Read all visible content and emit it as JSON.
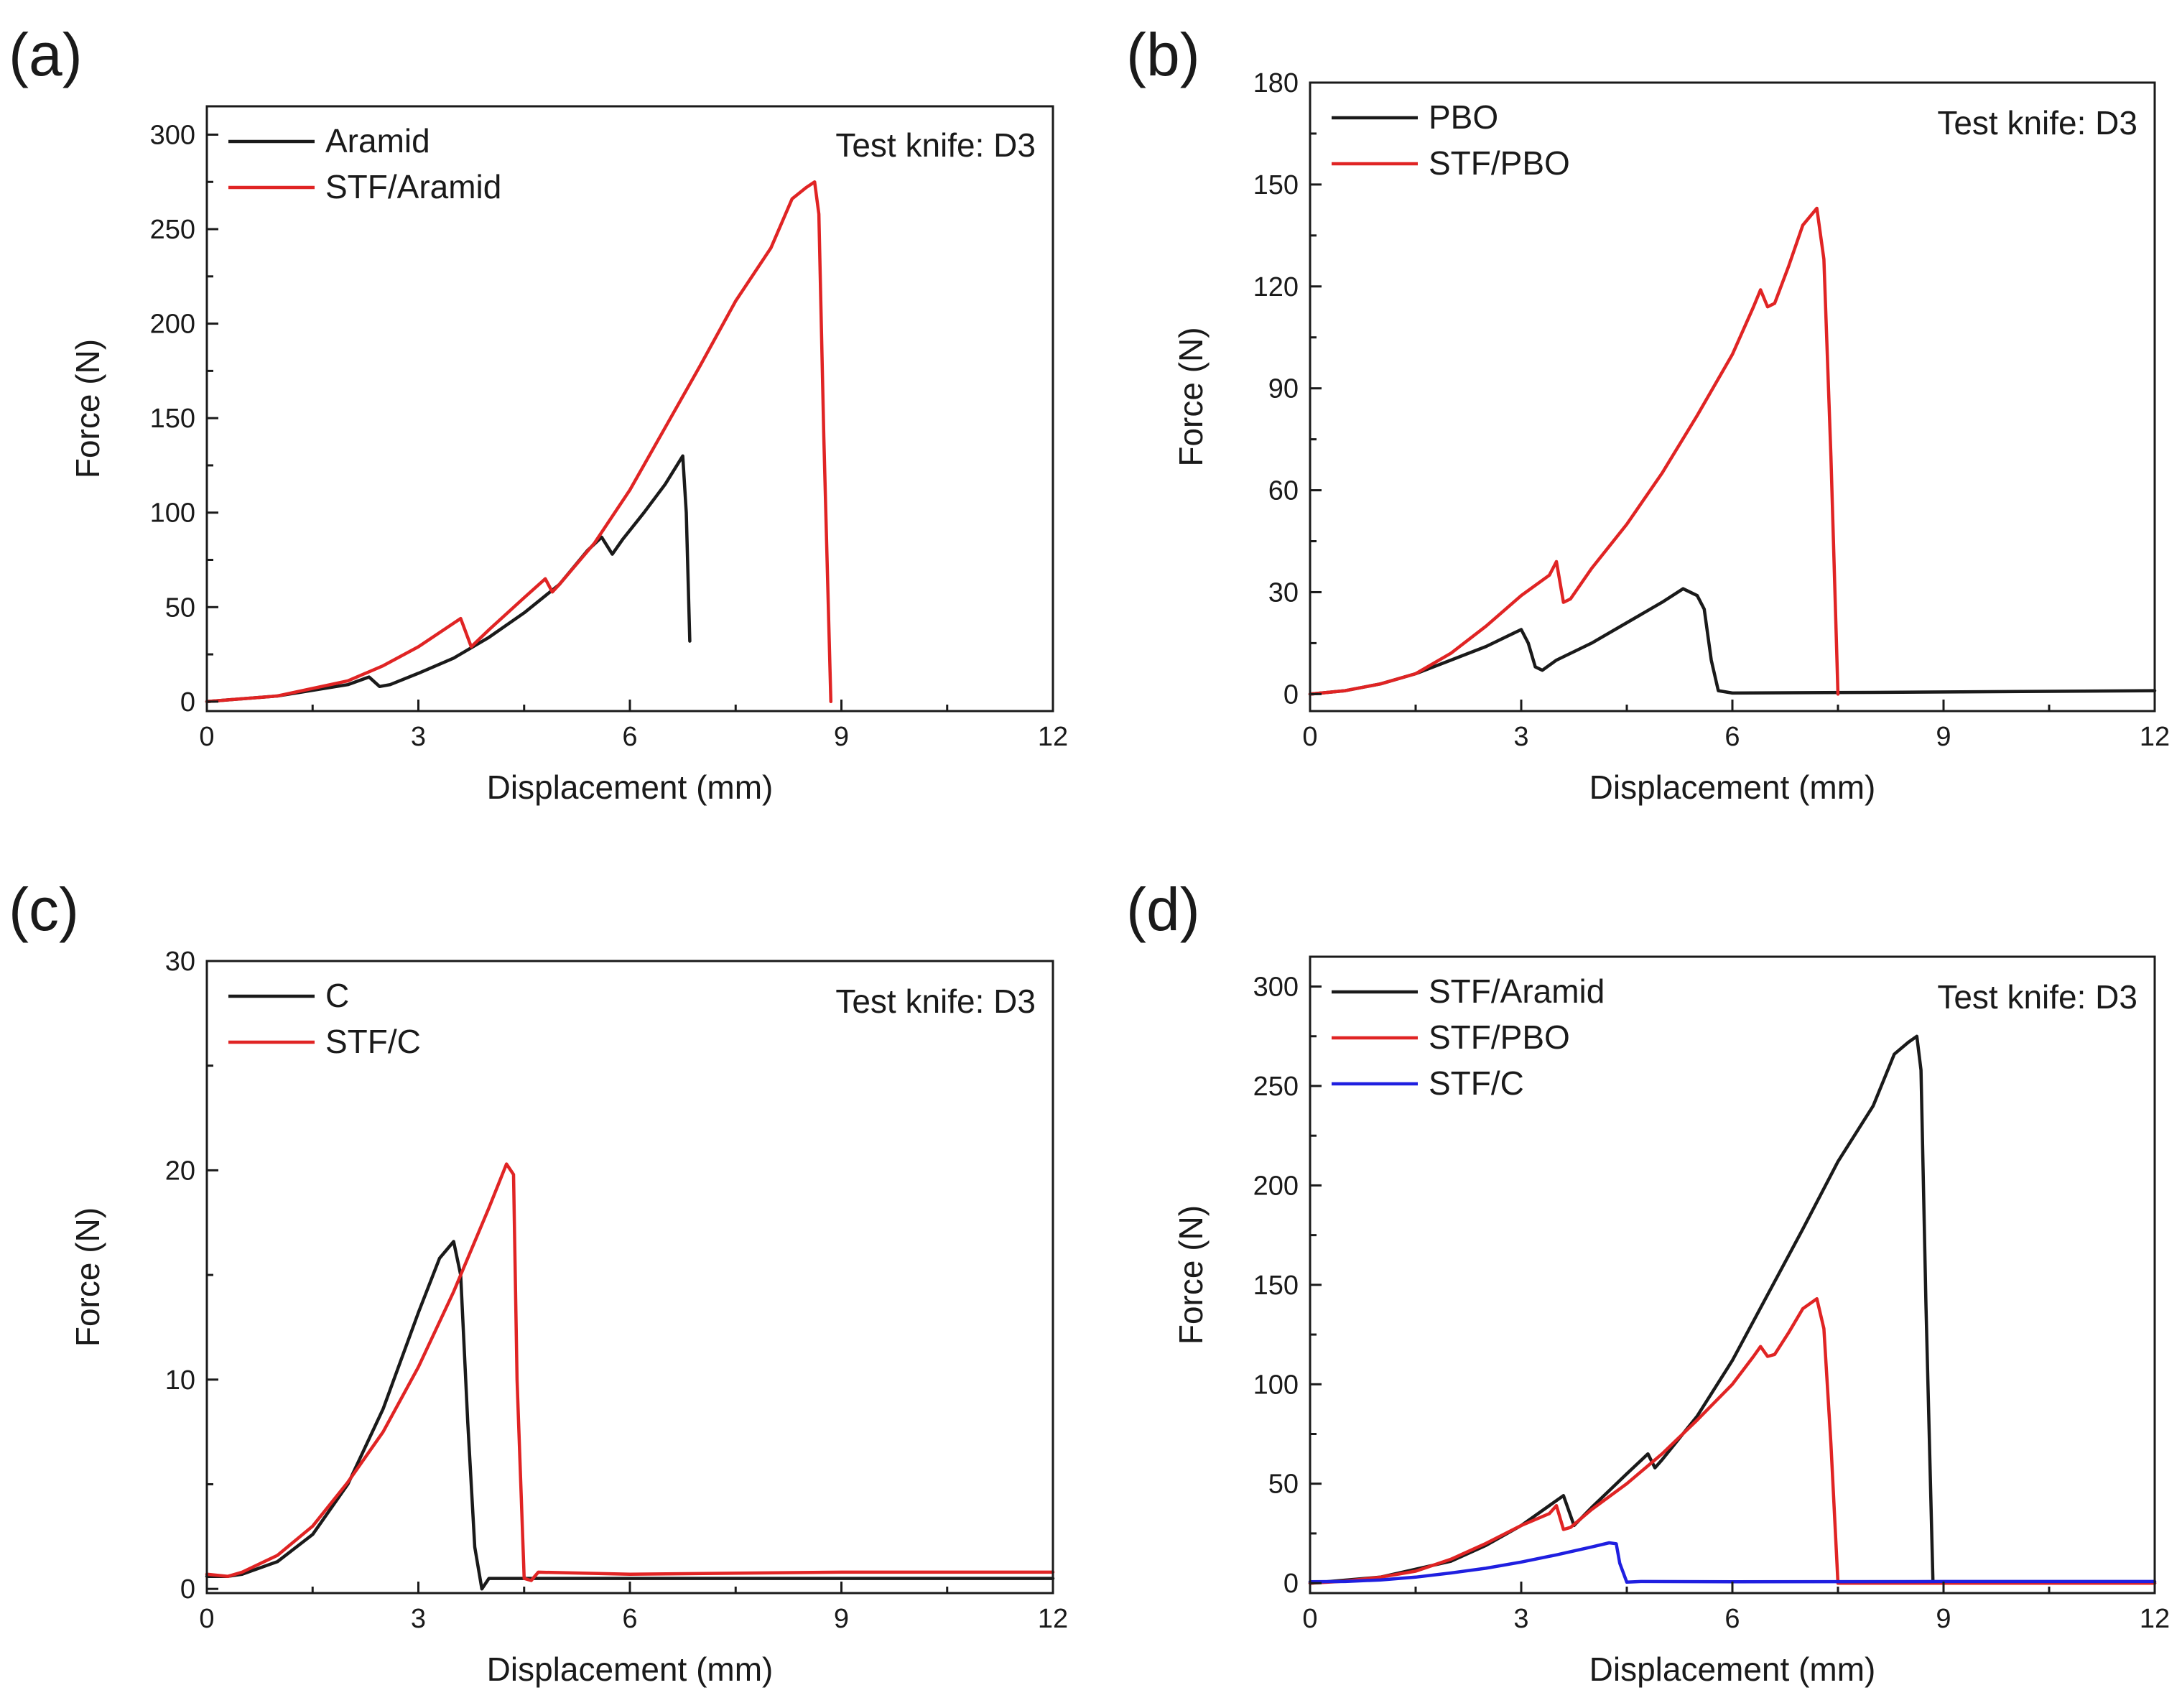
{
  "chart_data": [
    {
      "type": "line",
      "panel_label": "(a)",
      "xlabel": "Displacement (mm)",
      "ylabel": "Force (N)",
      "xlim": [
        0,
        12
      ],
      "ylim": [
        -5,
        315
      ],
      "xticks": [
        0,
        3,
        6,
        9,
        12
      ],
      "yticks": [
        0,
        50,
        100,
        150,
        200,
        250,
        300
      ],
      "annotation": "Test knife: D3",
      "legend_position": "top-left",
      "series": [
        {
          "name": "Aramid",
          "color": "#1a1a1a",
          "points": [
            [
              0,
              0
            ],
            [
              1,
              3
            ],
            [
              2,
              9
            ],
            [
              2.3,
              13
            ],
            [
              2.45,
              8
            ],
            [
              2.6,
              9
            ],
            [
              3,
              15
            ],
            [
              3.5,
              23
            ],
            [
              4,
              34
            ],
            [
              4.5,
              47
            ],
            [
              5,
              62
            ],
            [
              5.4,
              80
            ],
            [
              5.6,
              87
            ],
            [
              5.75,
              78
            ],
            [
              5.9,
              86
            ],
            [
              6.2,
              100
            ],
            [
              6.5,
              115
            ],
            [
              6.75,
              130
            ],
            [
              6.8,
              100
            ],
            [
              6.85,
              32
            ]
          ]
        },
        {
          "name": "STF/Aramid",
          "color": "#e02424",
          "points": [
            [
              0,
              0
            ],
            [
              1,
              3
            ],
            [
              2,
              11
            ],
            [
              2.5,
              19
            ],
            [
              3,
              29
            ],
            [
              3.6,
              44
            ],
            [
              3.75,
              29
            ],
            [
              4,
              38
            ],
            [
              4.5,
              55
            ],
            [
              4.8,
              65
            ],
            [
              4.9,
              58
            ],
            [
              5,
              62
            ],
            [
              5.5,
              84
            ],
            [
              6,
              112
            ],
            [
              6.5,
              145
            ],
            [
              7,
              178
            ],
            [
              7.5,
              212
            ],
            [
              8,
              240
            ],
            [
              8.3,
              266
            ],
            [
              8.5,
              272
            ],
            [
              8.62,
              275
            ],
            [
              8.68,
              258
            ],
            [
              8.75,
              140
            ],
            [
              8.85,
              0
            ]
          ]
        }
      ]
    },
    {
      "type": "line",
      "panel_label": "(b)",
      "xlabel": "Displacement (mm)",
      "ylabel": "Force (N)",
      "xlim": [
        0,
        12
      ],
      "ylim": [
        -5,
        180
      ],
      "xticks": [
        0,
        3,
        6,
        9,
        12
      ],
      "yticks": [
        0,
        30,
        60,
        90,
        120,
        150,
        180
      ],
      "annotation": "Test knife: D3",
      "legend_position": "top-left",
      "series": [
        {
          "name": "PBO",
          "color": "#1a1a1a",
          "points": [
            [
              0,
              0
            ],
            [
              0.5,
              1
            ],
            [
              1,
              3
            ],
            [
              1.5,
              6
            ],
            [
              2,
              10
            ],
            [
              2.5,
              14
            ],
            [
              2.9,
              18
            ],
            [
              3,
              19
            ],
            [
              3.1,
              15
            ],
            [
              3.2,
              8
            ],
            [
              3.3,
              7
            ],
            [
              3.5,
              10
            ],
            [
              4,
              15
            ],
            [
              4.5,
              21
            ],
            [
              5,
              27
            ],
            [
              5.3,
              31
            ],
            [
              5.5,
              29
            ],
            [
              5.6,
              25
            ],
            [
              5.7,
              10
            ],
            [
              5.8,
              1
            ],
            [
              6,
              0.3
            ],
            [
              8,
              0.5
            ],
            [
              12,
              1
            ]
          ]
        },
        {
          "name": "STF/PBO",
          "color": "#e02424",
          "points": [
            [
              0,
              0
            ],
            [
              0.5,
              1
            ],
            [
              1,
              3
            ],
            [
              1.5,
              6
            ],
            [
              2,
              12
            ],
            [
              2.5,
              20
            ],
            [
              3,
              29
            ],
            [
              3.4,
              35
            ],
            [
              3.5,
              39
            ],
            [
              3.6,
              27
            ],
            [
              3.7,
              28
            ],
            [
              4,
              37
            ],
            [
              4.5,
              50
            ],
            [
              5,
              65
            ],
            [
              5.5,
              82
            ],
            [
              6,
              100
            ],
            [
              6.3,
              114
            ],
            [
              6.4,
              119
            ],
            [
              6.5,
              114
            ],
            [
              6.6,
              115
            ],
            [
              6.8,
              126
            ],
            [
              7,
              138
            ],
            [
              7.2,
              143
            ],
            [
              7.3,
              128
            ],
            [
              7.4,
              70
            ],
            [
              7.5,
              0
            ]
          ]
        }
      ]
    },
    {
      "type": "line",
      "panel_label": "(c)",
      "xlabel": "Displacement (mm)",
      "ylabel": "Force (N)",
      "xlim": [
        0,
        12
      ],
      "ylim": [
        -0.2,
        30
      ],
      "xticks": [
        0,
        3,
        6,
        9,
        12
      ],
      "yticks": [
        0,
        10,
        20,
        30
      ],
      "annotation": "Test knife: D3",
      "legend_position": "top-left",
      "series": [
        {
          "name": "C",
          "color": "#1a1a1a",
          "points": [
            [
              0,
              0.6
            ],
            [
              0.3,
              0.6
            ],
            [
              0.5,
              0.7
            ],
            [
              1,
              1.3
            ],
            [
              1.5,
              2.6
            ],
            [
              2,
              5
            ],
            [
              2.5,
              8.6
            ],
            [
              3,
              13.2
            ],
            [
              3.3,
              15.8
            ],
            [
              3.5,
              16.6
            ],
            [
              3.6,
              15
            ],
            [
              3.7,
              8
            ],
            [
              3.8,
              2
            ],
            [
              3.9,
              0
            ],
            [
              4,
              0.5
            ],
            [
              6,
              0.5
            ],
            [
              9,
              0.5
            ],
            [
              12,
              0.5
            ]
          ]
        },
        {
          "name": "STF/C",
          "color": "#e02424",
          "points": [
            [
              0,
              0.7
            ],
            [
              0.3,
              0.6
            ],
            [
              0.5,
              0.8
            ],
            [
              1,
              1.6
            ],
            [
              1.5,
              3
            ],
            [
              2,
              5.1
            ],
            [
              2.5,
              7.5
            ],
            [
              3,
              10.6
            ],
            [
              3.5,
              14.2
            ],
            [
              4,
              18.2
            ],
            [
              4.25,
              20.3
            ],
            [
              4.35,
              19.8
            ],
            [
              4.4,
              10
            ],
            [
              4.5,
              0.5
            ],
            [
              4.6,
              0.4
            ],
            [
              4.7,
              0.8
            ],
            [
              6,
              0.7
            ],
            [
              9,
              0.8
            ],
            [
              12,
              0.8
            ]
          ]
        }
      ]
    },
    {
      "type": "line",
      "panel_label": "(d)",
      "xlabel": "Displacement (mm)",
      "ylabel": "Force (N)",
      "xlim": [
        0,
        12
      ],
      "ylim": [
        -5,
        315
      ],
      "xticks": [
        0,
        3,
        6,
        9,
        12
      ],
      "yticks": [
        0,
        50,
        100,
        150,
        200,
        250,
        300
      ],
      "annotation": "Test knife: D3",
      "legend_position": "top-left",
      "series": [
        {
          "name": "STF/Aramid",
          "color": "#1a1a1a",
          "points": [
            [
              0,
              0
            ],
            [
              1,
              3
            ],
            [
              2,
              11
            ],
            [
              2.5,
              19
            ],
            [
              3,
              29
            ],
            [
              3.6,
              44
            ],
            [
              3.75,
              29
            ],
            [
              4,
              38
            ],
            [
              4.5,
              55
            ],
            [
              4.8,
              65
            ],
            [
              4.9,
              58
            ],
            [
              5,
              62
            ],
            [
              5.5,
              84
            ],
            [
              6,
              112
            ],
            [
              6.5,
              145
            ],
            [
              7,
              178
            ],
            [
              7.5,
              212
            ],
            [
              8,
              240
            ],
            [
              8.3,
              266
            ],
            [
              8.5,
              272
            ],
            [
              8.62,
              275
            ],
            [
              8.68,
              258
            ],
            [
              8.75,
              140
            ],
            [
              8.85,
              0
            ],
            [
              12,
              0
            ]
          ]
        },
        {
          "name": "STF/PBO",
          "color": "#e02424",
          "points": [
            [
              0,
              0
            ],
            [
              0.5,
              1
            ],
            [
              1,
              3
            ],
            [
              1.5,
              6
            ],
            [
              2,
              12
            ],
            [
              2.5,
              20
            ],
            [
              3,
              29
            ],
            [
              3.4,
              35
            ],
            [
              3.5,
              39
            ],
            [
              3.6,
              27
            ],
            [
              3.7,
              28
            ],
            [
              4,
              37
            ],
            [
              4.5,
              50
            ],
            [
              5,
              65
            ],
            [
              5.5,
              82
            ],
            [
              6,
              100
            ],
            [
              6.3,
              114
            ],
            [
              6.4,
              119
            ],
            [
              6.5,
              114
            ],
            [
              6.6,
              115
            ],
            [
              6.8,
              126
            ],
            [
              7,
              138
            ],
            [
              7.2,
              143
            ],
            [
              7.3,
              128
            ],
            [
              7.4,
              70
            ],
            [
              7.5,
              0
            ],
            [
              12,
              0
            ]
          ]
        },
        {
          "name": "STF/C",
          "color": "#1f1fe0",
          "points": [
            [
              0,
              0.7
            ],
            [
              0.5,
              0.8
            ],
            [
              1,
              1.6
            ],
            [
              1.5,
              3
            ],
            [
              2,
              5.1
            ],
            [
              2.5,
              7.5
            ],
            [
              3,
              10.6
            ],
            [
              3.5,
              14.2
            ],
            [
              4,
              18.2
            ],
            [
              4.25,
              20.3
            ],
            [
              4.35,
              19.8
            ],
            [
              4.4,
              10
            ],
            [
              4.5,
              0.5
            ],
            [
              4.7,
              0.8
            ],
            [
              6,
              0.7
            ],
            [
              9,
              0.8
            ],
            [
              12,
              0.8
            ]
          ]
        }
      ]
    }
  ]
}
